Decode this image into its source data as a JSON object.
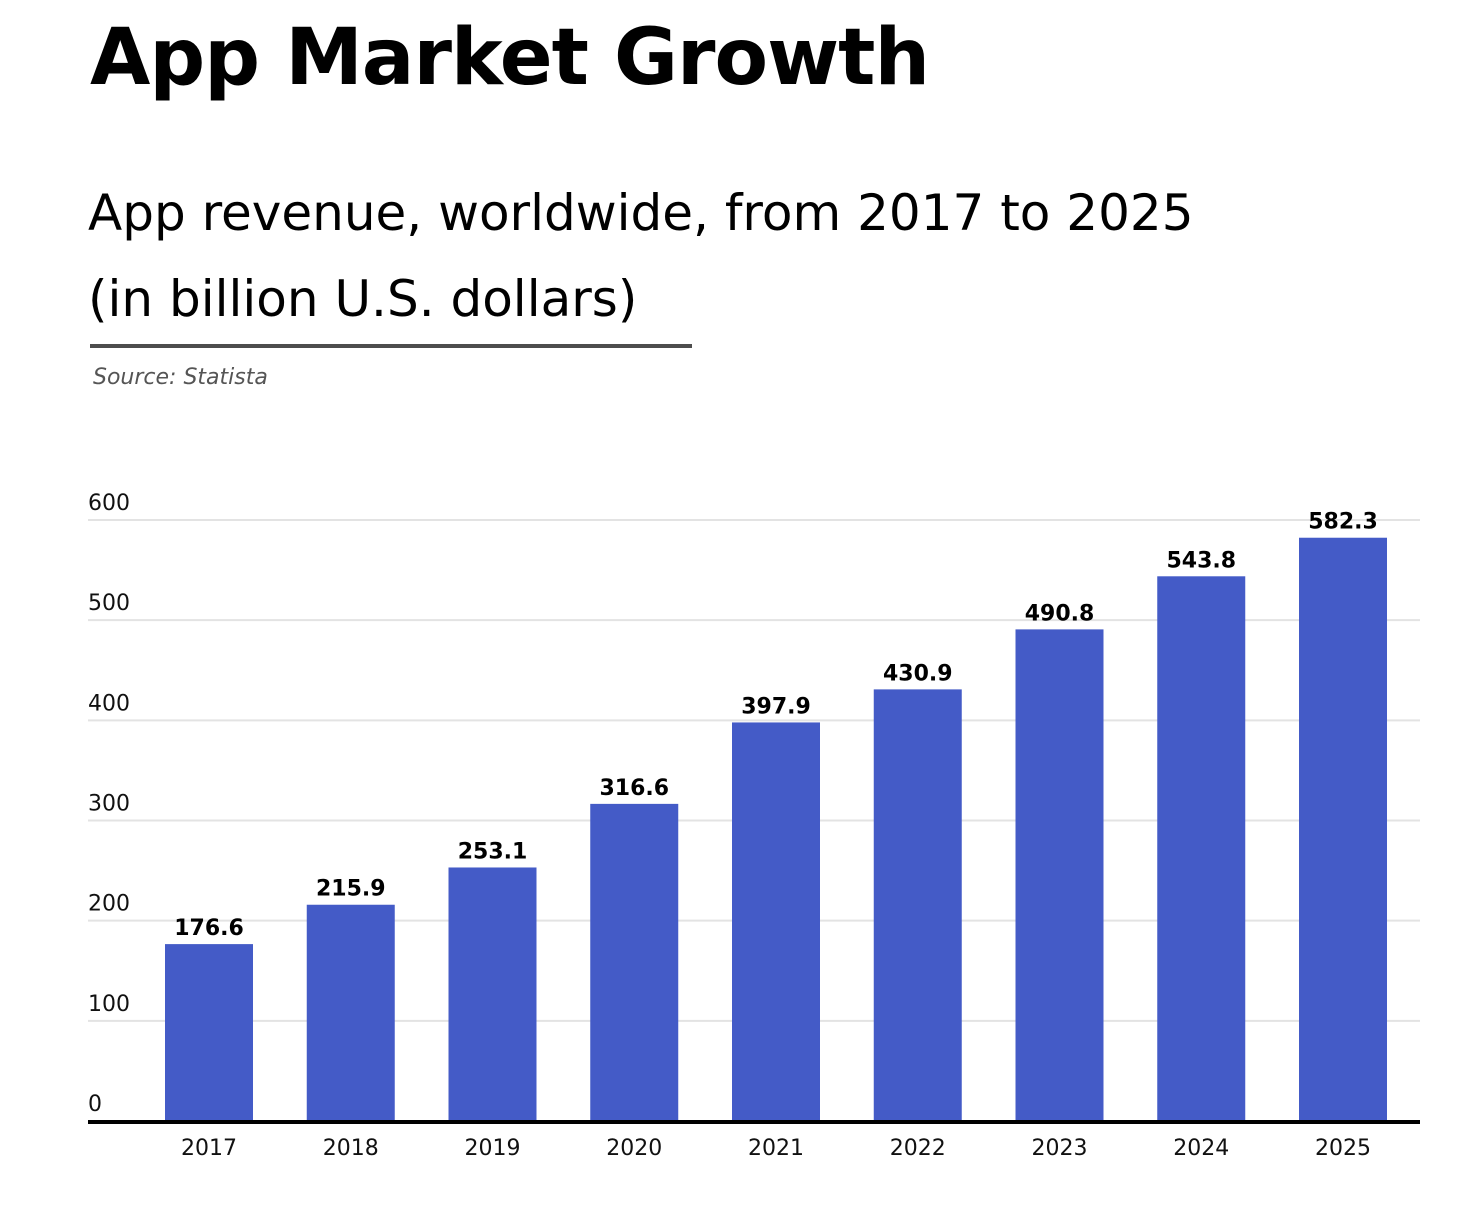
{
  "title": "App Market Growth",
  "subtitle_line1": "App revenue, worldwide, from 2017 to 2025",
  "subtitle_line2": "(in billion U.S. dollars)",
  "source": "Source: Statista",
  "colors": {
    "bar": "#445bc7",
    "grid": "#e3e3e3",
    "axis": "#000000",
    "rule": "#4d4d4d"
  },
  "chart_data": {
    "type": "bar",
    "categories": [
      "2017",
      "2018",
      "2019",
      "2020",
      "2021",
      "2022",
      "2023",
      "2024",
      "2025"
    ],
    "values": [
      176.6,
      215.9,
      253.1,
      316.6,
      397.9,
      430.9,
      490.8,
      543.8,
      582.3
    ],
    "value_labels": [
      "176.6",
      "215.9",
      "253.1",
      "316.6",
      "397.9",
      "430.9",
      "490.8",
      "543.8",
      "582.3"
    ],
    "ylim": [
      0,
      600
    ],
    "yticks": [
      0,
      100,
      200,
      300,
      400,
      500,
      600
    ],
    "grid": true,
    "xlabel": "",
    "ylabel": ""
  }
}
